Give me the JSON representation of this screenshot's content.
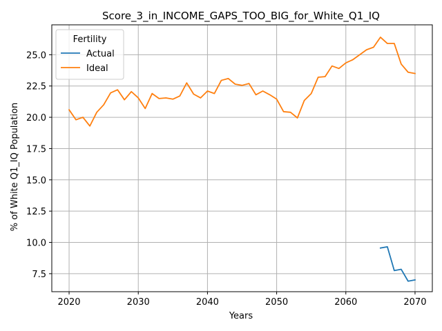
{
  "chart_data": {
    "type": "line",
    "title": "Score_3_in_INCOME_GAPS_TOO_BIG_for_White_Q1_IQ",
    "xlabel": "Years",
    "ylabel": "% of White Q1_IQ Population",
    "xlim": [
      2017.5,
      2072.5
    ],
    "ylim": [
      6.06,
      27.39
    ],
    "xticks": [
      2020,
      2030,
      2040,
      2050,
      2060,
      2070
    ],
    "yticks": [
      7.5,
      10.0,
      12.5,
      15.0,
      17.5,
      20.0,
      22.5,
      25.0
    ],
    "grid": true,
    "legend": {
      "title": "Fertility",
      "position": "upper-left"
    },
    "series": [
      {
        "name": "Actual",
        "color": "#1f77b4",
        "x": [
          2065,
          2066,
          2067,
          2068,
          2069,
          2070
        ],
        "y": [
          9.55,
          9.65,
          7.75,
          7.85,
          6.9,
          7.0
        ]
      },
      {
        "name": "Ideal",
        "color": "#ff7f0e",
        "x": [
          2020,
          2021,
          2022,
          2023,
          2024,
          2025,
          2026,
          2027,
          2028,
          2029,
          2030,
          2031,
          2032,
          2033,
          2034,
          2035,
          2036,
          2037,
          2038,
          2039,
          2040,
          2041,
          2042,
          2043,
          2044,
          2045,
          2046,
          2047,
          2048,
          2049,
          2050,
          2051,
          2052,
          2053,
          2054,
          2055,
          2056,
          2057,
          2058,
          2059,
          2060,
          2061,
          2062,
          2063,
          2064,
          2065,
          2066,
          2067,
          2068,
          2069,
          2070
        ],
        "y": [
          20.6,
          19.8,
          20.0,
          19.3,
          20.4,
          21.0,
          21.95,
          22.2,
          21.4,
          22.05,
          21.55,
          20.7,
          21.9,
          21.5,
          21.55,
          21.45,
          21.7,
          22.75,
          21.85,
          21.55,
          22.1,
          21.9,
          22.95,
          23.1,
          22.65,
          22.55,
          22.7,
          21.8,
          22.1,
          21.8,
          21.45,
          20.45,
          20.4,
          19.95,
          21.35,
          21.9,
          23.2,
          23.25,
          24.1,
          23.9,
          24.35,
          24.6,
          25.0,
          25.4,
          25.6,
          26.4,
          25.9,
          25.9,
          24.25,
          23.6,
          23.5
        ]
      }
    ]
  }
}
